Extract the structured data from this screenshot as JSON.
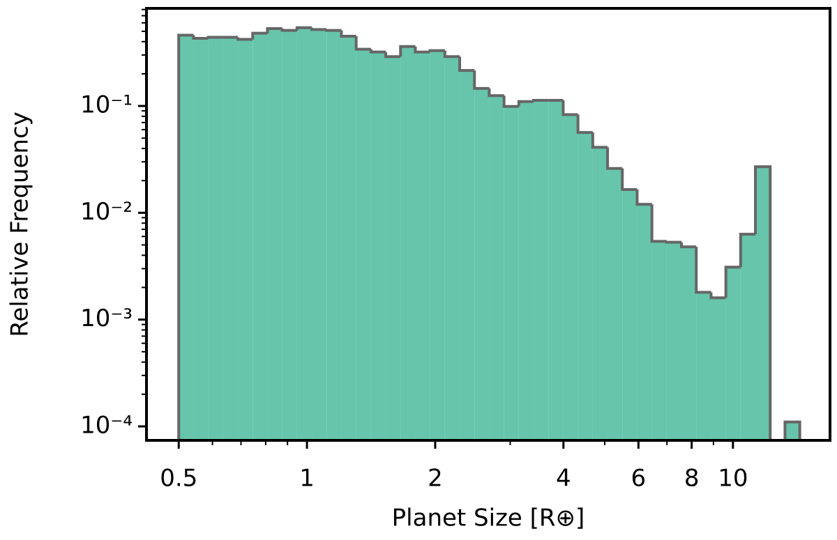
{
  "chart_data": {
    "type": "histogram",
    "xlabel": "Planet Size [R⊕]",
    "ylabel": "Relative Frequency",
    "bins": [
      0.5,
      0.5416,
      0.5867,
      0.6355,
      0.6884,
      0.7457,
      0.8077,
      0.8749,
      0.9477,
      1.0266,
      1.112,
      1.2045,
      1.3047,
      1.4133,
      1.5309,
      1.6583,
      1.7963,
      1.9457,
      2.1076,
      2.283,
      2.473,
      2.6788,
      2.9017,
      3.1431,
      3.4046,
      3.6879,
      3.9948,
      4.3272,
      4.6873,
      5.0773,
      5.4998,
      5.9574,
      6.4531,
      6.9901,
      7.5717,
      8.2017,
      8.8842,
      9.6234,
      10.424,
      11.2914,
      12.231,
      13.2487,
      14.3511
    ],
    "values": [
      0.46,
      0.43,
      0.44,
      0.44,
      0.42,
      0.48,
      0.53,
      0.51,
      0.54,
      0.52,
      0.51,
      0.45,
      0.34,
      0.32,
      0.29,
      0.36,
      0.32,
      0.33,
      0.29,
      0.215,
      0.146,
      0.125,
      0.099,
      0.11,
      0.113,
      0.113,
      0.083,
      0.0565,
      0.041,
      0.026,
      0.0165,
      0.012,
      0.0054,
      0.0053,
      0.0048,
      0.0018,
      0.0016,
      0.0031,
      0.0063,
      0.027,
      0,
      0.00011
    ],
    "color": "#66c5ab",
    "edgecolor": "#666666",
    "xscale": "log",
    "yscale": "log",
    "xlim": [
      0.42,
      16.9
    ],
    "ylim": [
      7.4e-05,
      0.82
    ],
    "xticks": [
      0.5,
      1,
      2,
      4,
      6,
      8,
      10
    ],
    "xminorticks": [
      0.6,
      0.7,
      0.8,
      0.9,
      3,
      5,
      7,
      9
    ],
    "yticks": [
      {
        "value": 0.0001,
        "label": "10⁻⁴"
      },
      {
        "value": 0.001,
        "label": "10⁻³"
      },
      {
        "value": 0.01,
        "label": "10⁻²"
      },
      {
        "value": 0.1,
        "label": "10⁻¹"
      }
    ],
    "yminorticks": [
      0.0002,
      0.0003,
      0.0004,
      0.0005,
      0.0006,
      0.0007,
      0.0008,
      0.0009,
      0.002,
      0.003,
      0.004,
      0.005,
      0.006,
      0.007,
      0.008,
      0.009,
      0.02,
      0.03,
      0.04,
      0.05,
      0.06,
      0.07,
      0.08,
      0.09,
      0.2,
      0.3,
      0.4,
      0.5,
      0.6,
      0.7,
      0.8
    ]
  }
}
